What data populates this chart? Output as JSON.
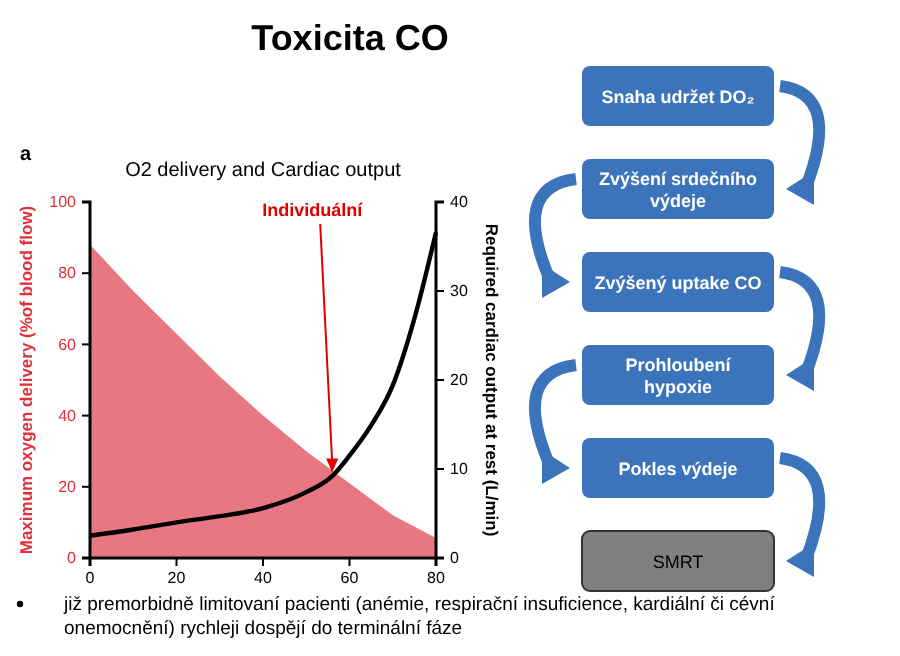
{
  "chart_data": [
    {
      "type": "area",
      "title": "O2 delivery and Cardiac output",
      "ylabel": "Maximum oxygen delivery (%of blood flow)",
      "y2label": "Required cardiac output at rest (L/min)",
      "annotations": [
        "a",
        {
          "text": "Individuální",
          "x": 56,
          "y": 24
        }
      ],
      "xlim": [
        0,
        80
      ],
      "xticks": [
        0,
        20,
        40,
        60,
        80
      ],
      "ylim": [
        0,
        100
      ],
      "yticks": [
        0,
        20,
        40,
        60,
        80,
        100
      ],
      "y2lim": [
        0,
        40
      ],
      "y2ticks": [
        0,
        10,
        20,
        30,
        40
      ],
      "grid": false,
      "series": [
        {
          "type": "area",
          "color": "#e35f6a",
          "x": [
            0,
            10,
            20,
            30,
            40,
            50,
            60,
            70,
            80
          ],
          "values": [
            88,
            75,
            63,
            51,
            40,
            30,
            21,
            12,
            5.6
          ]
        },
        {
          "type": "line",
          "axis": "y2",
          "color": "#000000",
          "marker": "none",
          "x": [
            0,
            10,
            20,
            30,
            40,
            50,
            56,
            60,
            65,
            70,
            75,
            80
          ],
          "values": [
            2.5,
            3.2,
            4,
            4.7,
            5.6,
            7.4,
            9.2,
            11.5,
            14.9,
            19.4,
            26.9,
            36.6
          ]
        }
      ]
    },
    {
      "type": "other",
      "title": "Toxicita CO",
      "categories": [
        "Snaha udržet DO₂",
        "Zvýšení srdečního výdeje",
        "Zvýšený uptake CO",
        "Prohloubení hypoxie",
        "Pokles výdeje",
        "SMRT"
      ],
      "colors": [
        "#3b74bb",
        "#3b74bb",
        "#3b74bb",
        "#3b74bb",
        "#3b74bb",
        "#7f7f7f"
      ],
      "annotations": [
        "již premorbidně limitovaní pacienti (anémie, respirační insuficience, kardiální či cévní onemocnění) rychleji dospějí do terminální fáze"
      ]
    }
  ]
}
